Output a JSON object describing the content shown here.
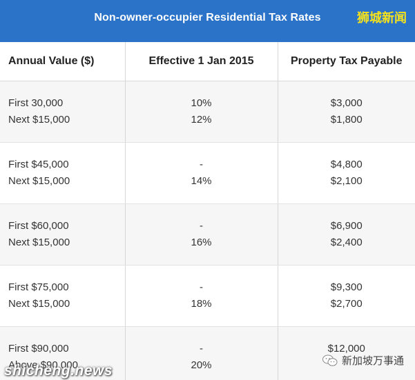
{
  "title": "Non-owner-occupier Residential Tax Rates",
  "watermark_top": "狮城新闻",
  "table": {
    "headers": [
      "Annual Value ($)",
      "Effective 1 Jan 2015",
      "Property Tax Payable"
    ],
    "rows": [
      {
        "av": [
          "First 30,000",
          "Next $15,000"
        ],
        "rate": [
          "10%",
          "12%"
        ],
        "tax": [
          "$3,000",
          "$1,800"
        ]
      },
      {
        "av": [
          "First $45,000",
          "Next $15,000"
        ],
        "rate": [
          "-",
          "14%"
        ],
        "tax": [
          "$4,800",
          "$2,100"
        ]
      },
      {
        "av": [
          "First $60,000",
          "Next $15,000"
        ],
        "rate": [
          "-",
          "16%"
        ],
        "tax": [
          "$6,900",
          "$2,400"
        ]
      },
      {
        "av": [
          "First $75,000",
          "Next $15,000"
        ],
        "rate": [
          "-",
          "18%"
        ],
        "tax": [
          "$9,300",
          "$2,700"
        ]
      },
      {
        "av": [
          "First $90,000",
          "Above $90,000"
        ],
        "rate": [
          "-",
          "20%"
        ],
        "tax": [
          "$12,000",
          ""
        ]
      }
    ]
  },
  "watermark_bottom_left": "shicheng.news",
  "watermark_bottom_right": "新加坡万事通",
  "colors": {
    "title_bar": "#2a73c9",
    "watermark_top": "#f7e21c",
    "alt_row": "#f6f6f6"
  },
  "icons": {
    "wechat": "wechat-icon"
  }
}
